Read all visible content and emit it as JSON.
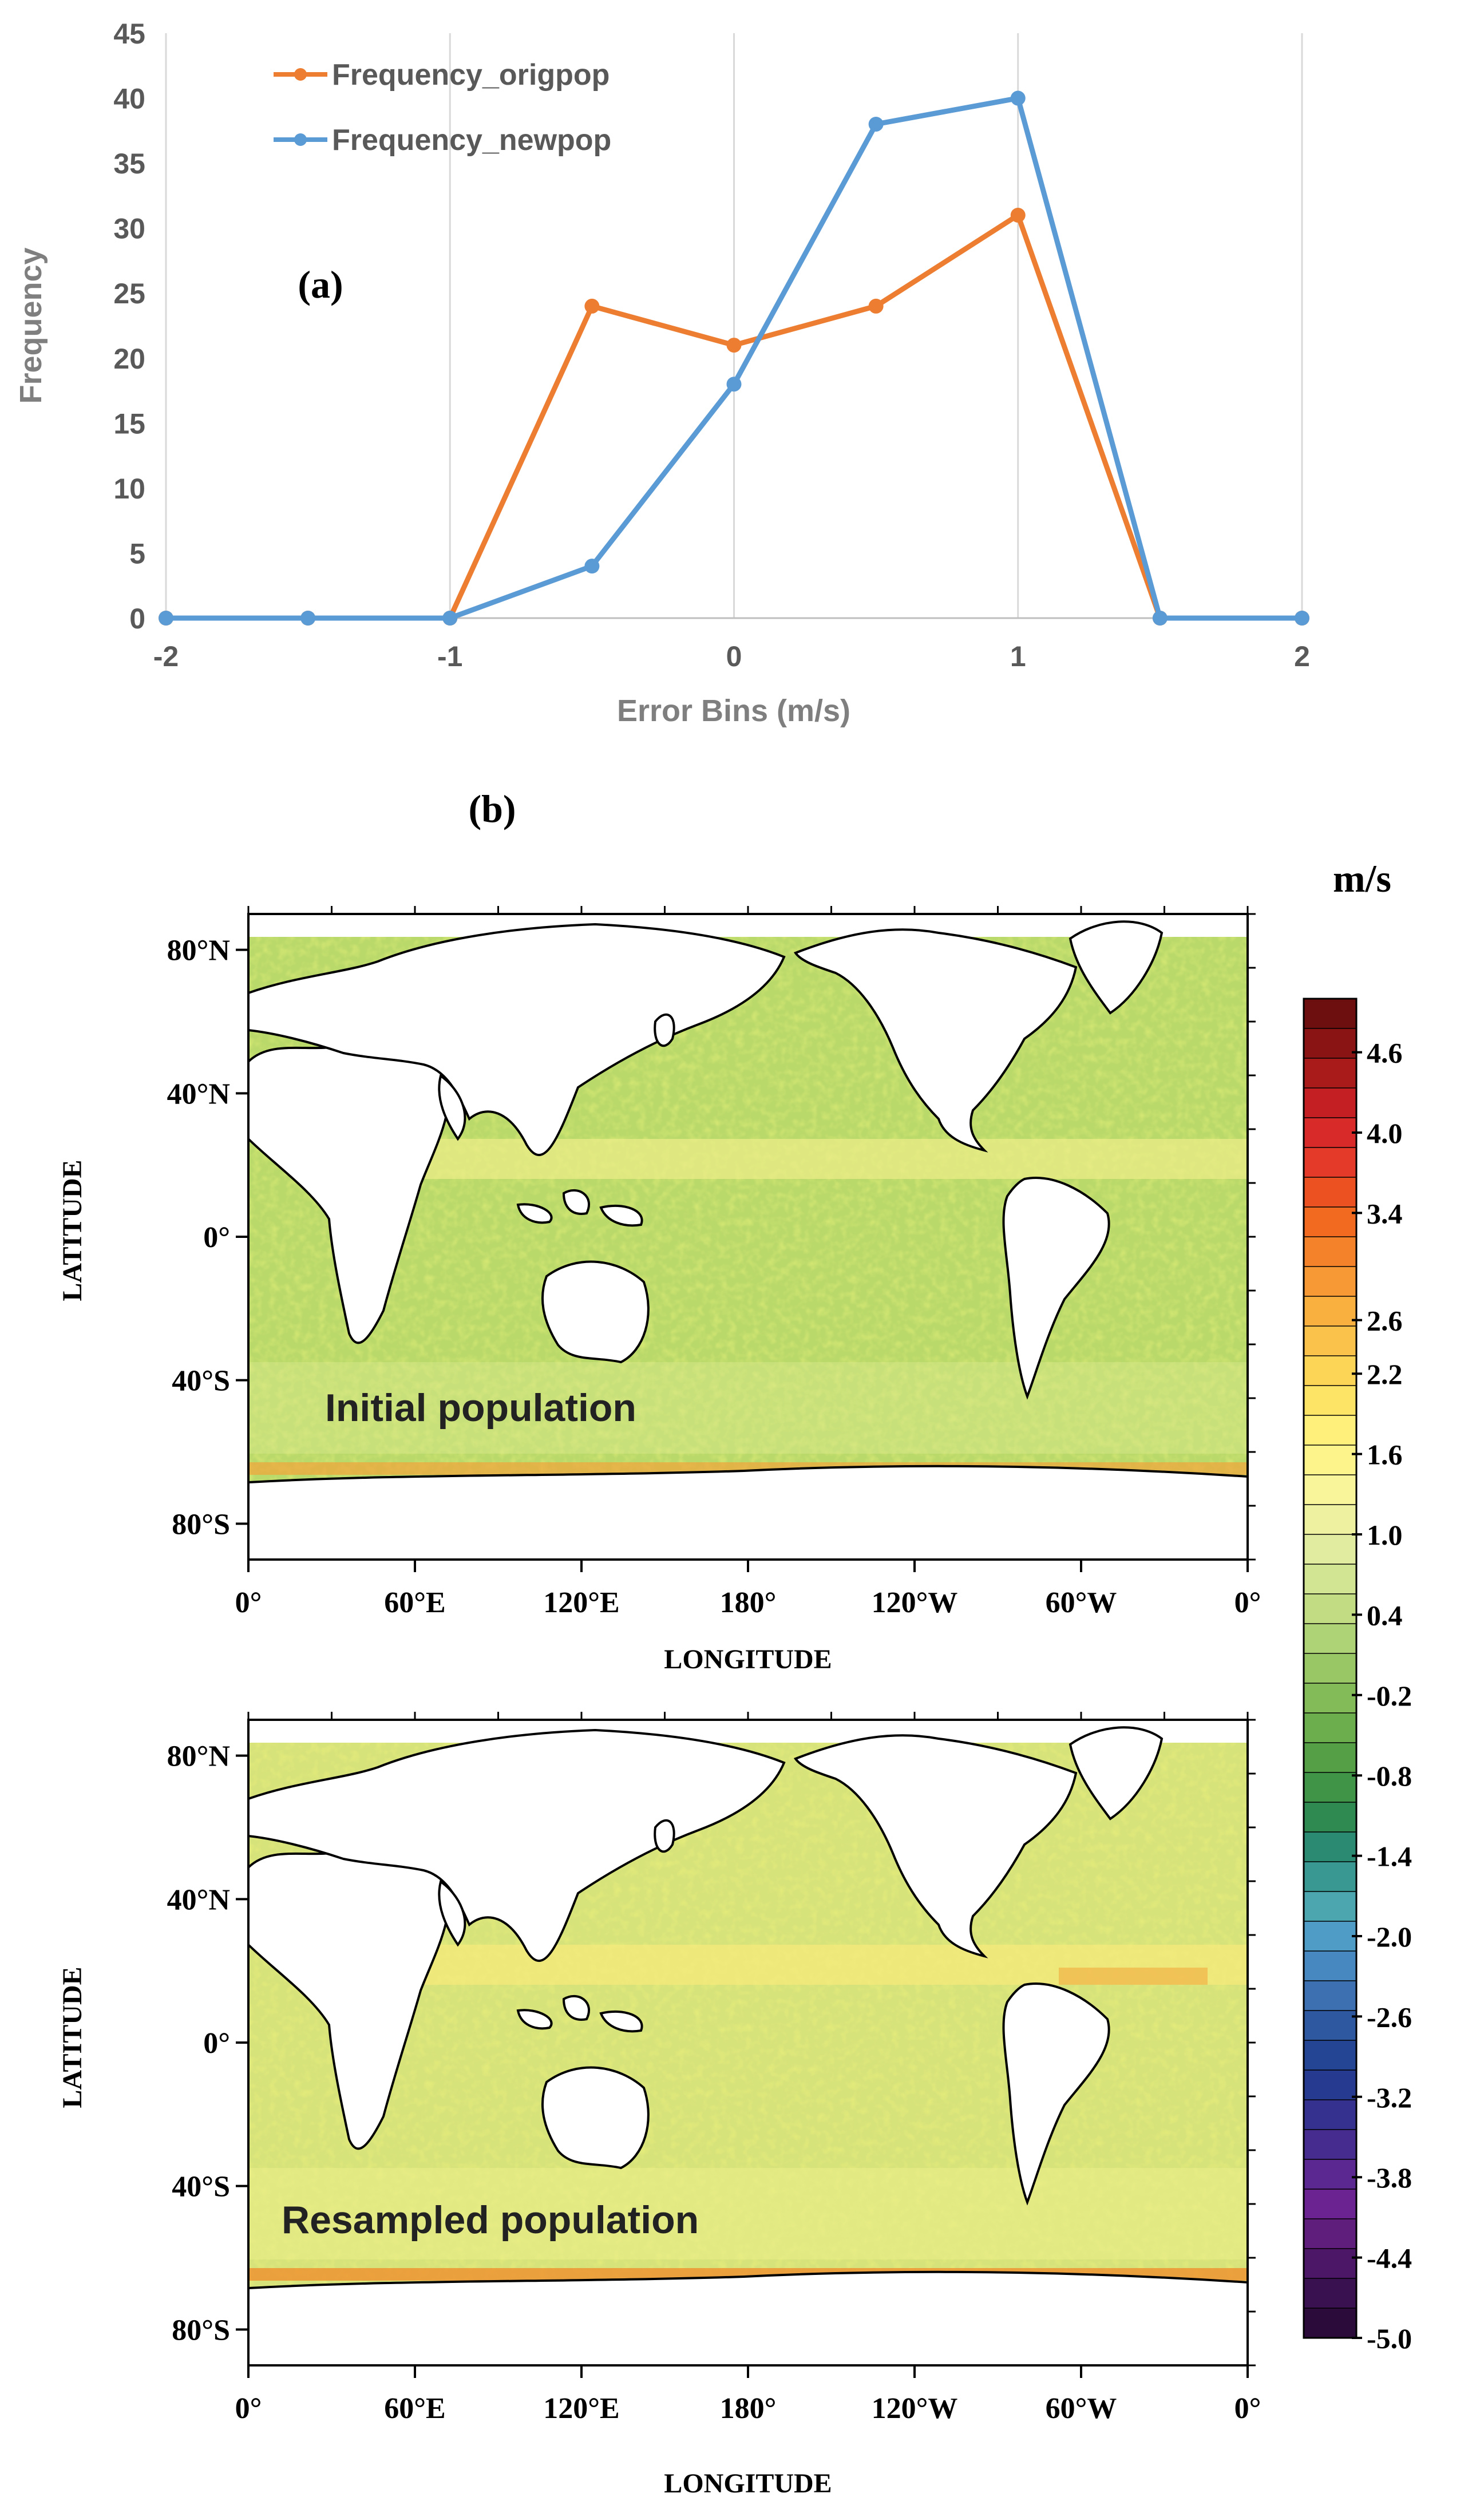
{
  "panel_a": {
    "label": "(a)",
    "chart_data": {
      "type": "line",
      "title": "",
      "xlabel": "Error Bins (m/s)",
      "ylabel": "Frequency",
      "x": [
        -2,
        -1.5,
        -1,
        -0.5,
        0,
        0.5,
        1,
        1.5,
        2
      ],
      "xticks": [
        "-2",
        "-1",
        "0",
        "1",
        "2"
      ],
      "xtick_values": [
        -2,
        -1,
        0,
        1,
        2
      ],
      "yticks": [
        "0",
        "5",
        "10",
        "15",
        "20",
        "25",
        "30",
        "35",
        "40",
        "45"
      ],
      "ytick_values": [
        0,
        5,
        10,
        15,
        20,
        25,
        30,
        35,
        40,
        45
      ],
      "xlim": [
        -2,
        2
      ],
      "ylim": [
        0,
        45
      ],
      "grid": "vertical",
      "legend_position": "top-left",
      "series": [
        {
          "name": "Frequency_origpop",
          "color": "#ed7d31",
          "values": [
            0,
            0,
            0,
            24,
            21,
            24,
            31,
            0,
            0
          ]
        },
        {
          "name": "Frequency_newpop",
          "color": "#5b9bd5",
          "values": [
            0,
            0,
            0,
            4,
            18,
            38,
            40,
            0,
            0
          ]
        }
      ]
    }
  },
  "panel_b": {
    "label": "(b)",
    "maps": [
      {
        "annotation": "Initial population"
      },
      {
        "annotation": "Resampled population"
      }
    ],
    "xlabel": "LONGITUDE",
    "ylabel": "LATITUDE",
    "lon_ticks": [
      "0°",
      "60°E",
      "120°E",
      "180°",
      "120°W",
      "60°W",
      "0°"
    ],
    "lat_ticks": [
      "80°N",
      "40°N",
      "0°",
      "40°S",
      "80°S"
    ],
    "lat_values": [
      80,
      40,
      0,
      -40,
      -80
    ],
    "colorbar": {
      "unit": "m/s",
      "tick_labels": [
        "4.6",
        "4.0",
        "3.4",
        "2.6",
        "2.2",
        "1.6",
        "1.0",
        "0.4",
        "-0.2",
        "-0.8",
        "-1.4",
        "-2.0",
        "-2.6",
        "-3.2",
        "-3.8",
        "-4.4",
        "-5.0"
      ],
      "max": 5.0,
      "min": -5.0,
      "colors": [
        "#6e0f0f",
        "#8a1414",
        "#a91a1a",
        "#c41f23",
        "#d92a2a",
        "#e33a2a",
        "#ec5122",
        "#f26a20",
        "#f4822a",
        "#f79a35",
        "#f9b03f",
        "#fbc24b",
        "#fcd456",
        "#fde466",
        "#fef07a",
        "#fdf58c",
        "#f9f59a",
        "#eef2a0",
        "#e1eca0",
        "#d2e592",
        "#c2dc84",
        "#aed276",
        "#99c766",
        "#82bb58",
        "#6cae4e",
        "#55a047",
        "#3f9448",
        "#2f8a52",
        "#2b8a72",
        "#3a9892",
        "#4ca6b0",
        "#4f9cc6",
        "#4888c0",
        "#3c70b0",
        "#2e58a0",
        "#244593",
        "#263a8f",
        "#34328e",
        "#472c8f",
        "#5a2890",
        "#6a2390",
        "#5f1d7c",
        "#4c1766",
        "#3a1150",
        "#2a0b3a"
      ]
    }
  }
}
